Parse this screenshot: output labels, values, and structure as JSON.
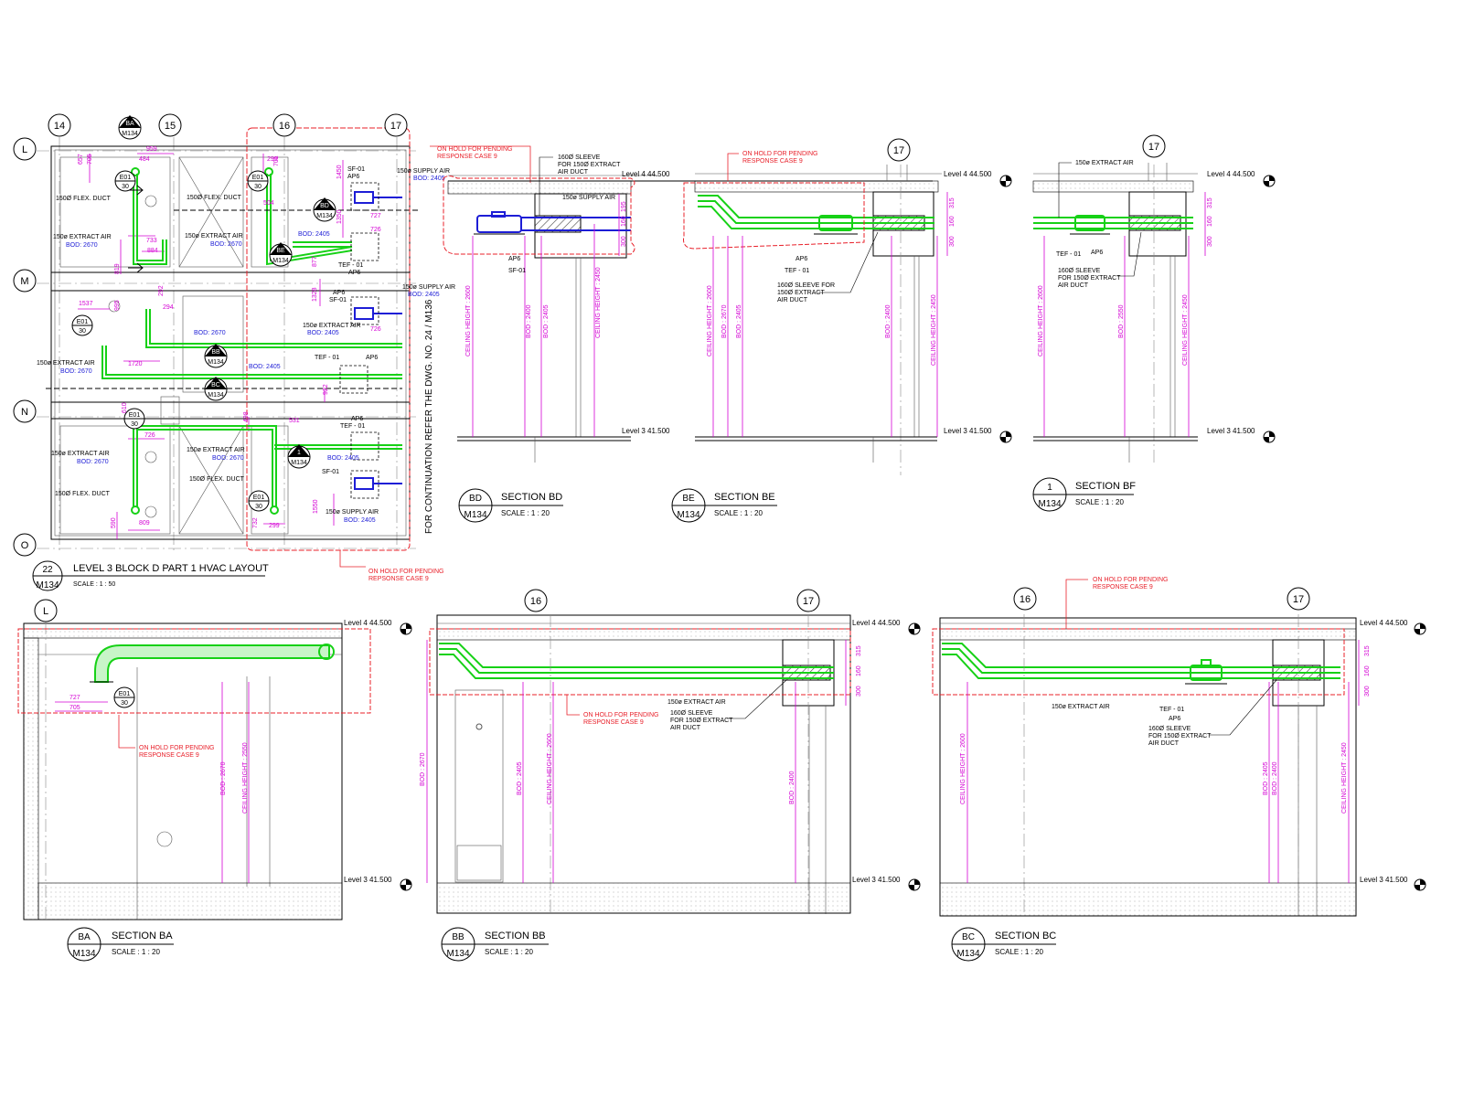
{
  "plan": {
    "grid_columns": [
      "14",
      "15",
      "16",
      "17"
    ],
    "grid_rows": [
      "L",
      "M",
      "N",
      "O"
    ],
    "title_number": "22",
    "title_sheet": "M134",
    "title": "LEVEL 3 BLOCK D PART 1 HVAC LAYOUT",
    "scale": "SCALE :  1 : 50",
    "continuation_note": "FOR CONTINUATION REFER THE DWG. NO. 24 / M136",
    "hold_note_top": "ON HOLD FOR PENDING RESPONSE CASE 9",
    "hold_note_bottom": "ON HOLD FOR PENDING REPSONSE CASE 9",
    "labels": {
      "flex_duct": "150Ø FLEX. DUCT",
      "extract_air": "150ø EXTRACT AIR",
      "bod_2670": "BOD: 2670",
      "bod_2405": "BOD: 2405",
      "supply_air": "150ø SUPPLY AIR",
      "sf01": "SF-01",
      "tef01": "TEF - 01",
      "ap6": "AP6",
      "e01": "E01",
      "e01_no": "30",
      "sheet": "M134",
      "tag_ba": "BA",
      "tag_bd": "BD",
      "tag_be": "BE",
      "tag_bb": "BB",
      "tag_bc": "BC"
    },
    "dims": [
      "657",
      "705",
      "959",
      "484",
      "733",
      "884",
      "819",
      "1537",
      "995",
      "292",
      "294",
      "1720",
      "610",
      "726",
      "809",
      "590",
      "299",
      "701",
      "504",
      "877",
      "1350",
      "726",
      "1450",
      "1328",
      "727",
      "922",
      "726",
      "498",
      "531",
      "732",
      "299",
      "1550"
    ]
  },
  "sections": {
    "level4": "Level 4  44.500",
    "level3": "Level 3  41.500",
    "bd": {
      "tag": "BD",
      "sheet": "M134",
      "title": "SECTION BD",
      "scale": "SCALE :  1 : 20"
    },
    "be": {
      "tag": "BE",
      "sheet": "M134",
      "title": "SECTION BE",
      "scale": "SCALE :  1 : 20"
    },
    "bf": {
      "tag": "1",
      "sheet": "M134",
      "title": "SECTION BF",
      "scale": "SCALE :  1 : 20"
    },
    "ba": {
      "tag": "BA",
      "sheet": "M134",
      "title": "SECTION BA",
      "scale": "SCALE :  1 : 20"
    },
    "bb": {
      "tag": "BB",
      "sheet": "M134",
      "title": "SECTION BB",
      "scale": "SCALE :  1 : 20"
    },
    "bc": {
      "tag": "BC",
      "sheet": "M134",
      "title": "SECTION BC",
      "scale": "SCALE :  1 : 20"
    },
    "hold_note": "ON HOLD FOR PENDING RESPONSE CASE 9",
    "sleeve_note": "160Ø SLEEVE FOR 150Ø EXTRACT AIR DUCT",
    "supply_air": "150ø SUPPLY AIR",
    "extract_air": "150ø EXTRACT AIR",
    "ap6": "AP6",
    "sf01": "SF-01",
    "tef01": "TEF - 01",
    "grid16": "16",
    "grid17": "17",
    "gridL": "L",
    "e01": "E01",
    "e01_no": "30",
    "dim_labels": {
      "ceiling_2600": "CEILING HEIGHT : 2600",
      "ceiling_2450": "CEILING HEIGHT : 2450",
      "ceiling_2550": "CEILING HEIGHT : 2550",
      "bod_2400": "BOD : 2400",
      "bod_2405": "BOD : 2405",
      "bod_2670": "BOD : 2670",
      "bod_2550": "BOD : 2550",
      "d315": "315",
      "d160": "160",
      "d300": "300",
      "d195": "195",
      "d727": "727",
      "d705": "705"
    }
  }
}
